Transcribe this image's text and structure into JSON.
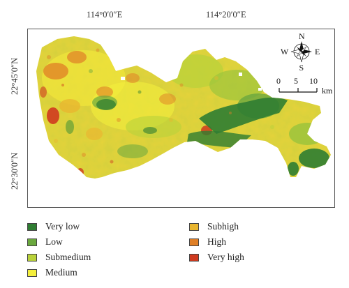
{
  "coordinates": {
    "lon_labels": [
      "114°0′0″E",
      "114°20′0″E"
    ],
    "lat_labels": [
      "22°45′0″N",
      "22°30′0″N"
    ]
  },
  "compass": {
    "north": "N",
    "south": "S",
    "east": "E",
    "west": "W"
  },
  "scale_bar": {
    "ticks": [
      "0",
      "5",
      "10"
    ],
    "unit": "km"
  },
  "legend": [
    {
      "label": "Very low",
      "color": "#2f7d32"
    },
    {
      "label": "Low",
      "color": "#6aa83e"
    },
    {
      "label": "Submedium",
      "color": "#b9d23a"
    },
    {
      "label": "Medium",
      "color": "#f4ef3c"
    },
    {
      "label": "Subhigh",
      "color": "#e9b630"
    },
    {
      "label": "High",
      "color": "#e07f26"
    },
    {
      "label": "Very high",
      "color": "#cf3a1f"
    }
  ]
}
